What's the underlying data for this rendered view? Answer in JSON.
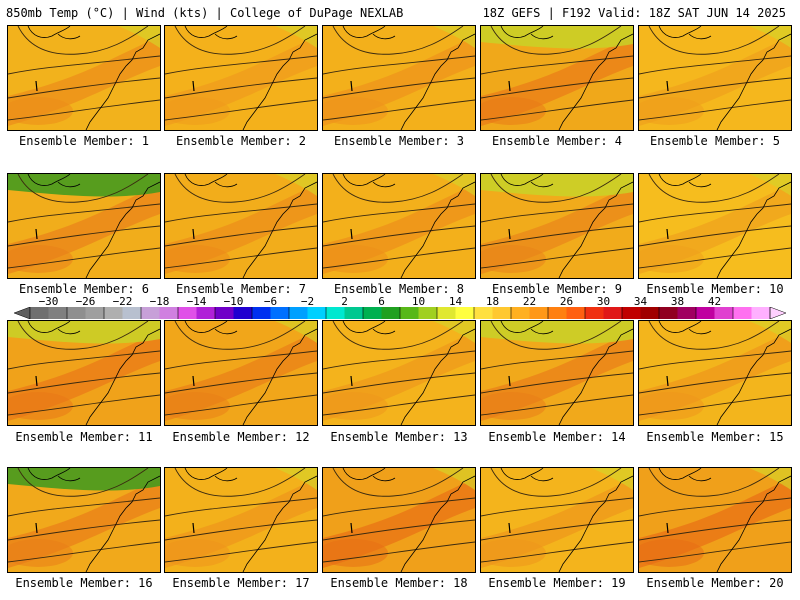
{
  "header": {
    "left_title": "850mb Temp (°C) | Wind (kts) | College of DuPage NEXLAB",
    "right_title": "18Z GEFS | F192 Valid: 18Z SAT JUN 14 2025"
  },
  "panels": [
    {
      "caption": "Ensemble Member: 1",
      "bg": "#f2b21c",
      "tint": "#ec8c1a"
    },
    {
      "caption": "Ensemble Member: 2",
      "bg": "#f4b11b",
      "tint": "#ef9a1c"
    },
    {
      "caption": "Ensemble Member: 3",
      "bg": "#f3b01b",
      "tint": "#ee931b"
    },
    {
      "caption": "Ensemble Member: 4",
      "bg": "#f0a81a",
      "tint": "#ea7a18"
    },
    {
      "caption": "Ensemble Member: 5",
      "bg": "#f5b71d",
      "tint": "#ef9f1c"
    },
    {
      "caption": "Ensemble Member: 6",
      "bg": "#f1ad1b",
      "tint": "#ea8019"
    },
    {
      "caption": "Ensemble Member: 7",
      "bg": "#f2ad1b",
      "tint": "#ec8b1a"
    },
    {
      "caption": "Ensemble Member: 8",
      "bg": "#f3b01b",
      "tint": "#ed8f1a"
    },
    {
      "caption": "Ensemble Member: 9",
      "bg": "#f1ab1b",
      "tint": "#ea8419"
    },
    {
      "caption": "Ensemble Member: 10",
      "bg": "#f6bd1e",
      "tint": "#efa11c"
    },
    {
      "caption": "Ensemble Member: 11",
      "bg": "#f0a21a",
      "tint": "#e97818"
    },
    {
      "caption": "Ensemble Member: 12",
      "bg": "#f1a61a",
      "tint": "#ea7f18"
    },
    {
      "caption": "Ensemble Member: 13",
      "bg": "#f4b31c",
      "tint": "#ee981b"
    },
    {
      "caption": "Ensemble Member: 14",
      "bg": "#f1a91b",
      "tint": "#ea7e18"
    },
    {
      "caption": "Ensemble Member: 15",
      "bg": "#f3b51c",
      "tint": "#ee961b"
    },
    {
      "caption": "Ensemble Member: 16",
      "bg": "#f1a91b",
      "tint": "#ea7d18"
    },
    {
      "caption": "Ensemble Member: 17",
      "bg": "#f3b11b",
      "tint": "#ee941b"
    },
    {
      "caption": "Ensemble Member: 18",
      "bg": "#f0a01a",
      "tint": "#e86f16"
    },
    {
      "caption": "Ensemble Member: 19",
      "bg": "#f4b41c",
      "tint": "#ee951b"
    },
    {
      "caption": "Ensemble Member: 20",
      "bg": "#f0a01a",
      "tint": "#e86d16"
    }
  ],
  "colorbar": {
    "labels": [
      "−30",
      "−26",
      "−22",
      "−18",
      "−14",
      "−10",
      "−6",
      "−2",
      "2",
      "6",
      "10",
      "14",
      "18",
      "22",
      "26",
      "30",
      "34",
      "38",
      "42"
    ],
    "colors": [
      "#6f6f6f",
      "#808080",
      "#8f8f8f",
      "#9f9f9f",
      "#afafaf",
      "#b8c0cf",
      "#c7a0d8",
      "#d080e0",
      "#e050e8",
      "#b020d8",
      "#7000c8",
      "#2000d0",
      "#0030f0",
      "#0070ff",
      "#00a0ff",
      "#00d0ff",
      "#00e8d0",
      "#00c890",
      "#00b050",
      "#20a020",
      "#58b818",
      "#a0d020",
      "#e0e830",
      "#ffff40",
      "#ffe040",
      "#ffc830",
      "#ffb020",
      "#ff9818",
      "#ff8010",
      "#ff6010",
      "#f03010",
      "#e01818",
      "#c00000",
      "#a00000",
      "#900020",
      "#a00060",
      "#c000a0",
      "#e040d0",
      "#ff70f0",
      "#ffb0ff"
    ]
  }
}
